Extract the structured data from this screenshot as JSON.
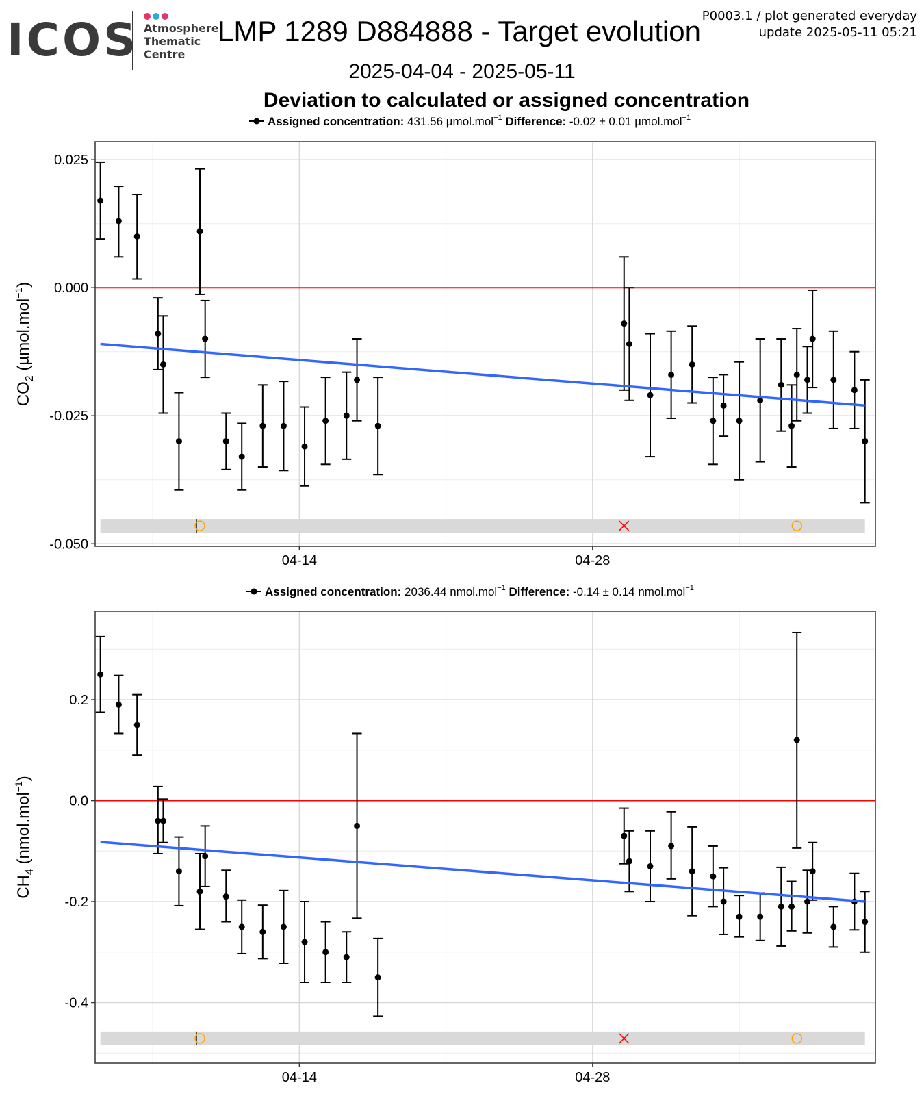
{
  "header": {
    "logo": {
      "text": "ICOS",
      "line1": "Atmosphere",
      "line2": "Thematic",
      "line3": "Centre",
      "dot_colors": [
        "#e8336d",
        "#29aae1",
        "#e8336d"
      ]
    },
    "title": "LMP 1289 D884888 - Target evolution",
    "gen_line1": "P0003.1 / plot generated everyday",
    "gen_line2": "update  2025-05-11 05:21",
    "date_range": "2025-04-04 - 2025-05-11",
    "subtitle": "Deviation to calculated or assigned concentration"
  },
  "colors": {
    "point": "#000000",
    "zero_line": "#ff0000",
    "trend": "#3366ff",
    "flag_band": "#d9d9d9",
    "flag_circle": "#ffa500",
    "flag_cross": "#ff0000",
    "grid_major": "#d6d6d6",
    "grid_minor": "#ebebeb"
  },
  "chart_data": [
    {
      "type": "scatter",
      "id": "co2",
      "ylabel_main": "CO",
      "ylabel_sub": "2",
      "ylabel_unit": " (µmol.mol",
      "ylabel_sup": "−1",
      "ylabel_close": ")",
      "legend": {
        "assigned_label": "Assigned concentration:",
        "assigned_value": " 431.56 µmol.mol",
        "assigned_sup": "−1",
        "diff_label": "Difference:",
        "diff_value": " -0.02 ± 0.01 µmol.mol",
        "diff_sup": "−1"
      },
      "xlim": [
        "2025-04-04T06:00",
        "2025-05-11T12:00"
      ],
      "ylim": [
        -0.0505,
        0.0285
      ],
      "yticks": [
        0.025,
        0.0,
        -0.025,
        -0.05
      ],
      "ytick_labels": [
        "0.025",
        "0.000",
        "-0.025",
        "-0.050"
      ],
      "xticks": [
        "2025-04-14",
        "2025-04-28"
      ],
      "xtick_labels": [
        "04-14",
        "04-28"
      ],
      "x_minor": [
        "2025-04-07",
        "2025-04-21",
        "2025-05-05"
      ],
      "grid": true,
      "hline": 0.0,
      "trend": {
        "x": [
          "2025-04-04T12:00",
          "2025-05-11T00:00"
        ],
        "y": [
          -0.011,
          -0.023
        ]
      },
      "flag_band": {
        "y": -0.0465,
        "x": [
          "2025-04-04T12:00",
          "2025-05-11T00:00"
        ]
      },
      "flags": [
        {
          "x": "2025-04-09T02:00",
          "kind": "tick"
        },
        {
          "x": "2025-04-09T06:00",
          "kind": "circle"
        },
        {
          "x": "2025-04-29T12:00",
          "kind": "cross"
        },
        {
          "x": "2025-05-07T18:00",
          "kind": "circle"
        }
      ],
      "points": [
        {
          "x": "2025-04-04T12:00",
          "y": 0.017,
          "lo": 0.0095,
          "hi": 0.0245
        },
        {
          "x": "2025-04-05T09:00",
          "y": 0.013,
          "lo": 0.006,
          "hi": 0.0198
        },
        {
          "x": "2025-04-06T06:00",
          "y": 0.01,
          "lo": 0.0017,
          "hi": 0.0182
        },
        {
          "x": "2025-04-07T06:00",
          "y": -0.009,
          "lo": -0.016,
          "hi": -0.002
        },
        {
          "x": "2025-04-07T12:00",
          "y": -0.015,
          "lo": -0.0245,
          "hi": -0.0055
        },
        {
          "x": "2025-04-08T06:00",
          "y": -0.03,
          "lo": -0.0395,
          "hi": -0.0205
        },
        {
          "x": "2025-04-09T06:00",
          "y": 0.011,
          "lo": -0.0013,
          "hi": 0.0232
        },
        {
          "x": "2025-04-09T12:00",
          "y": -0.01,
          "lo": -0.0175,
          "hi": -0.0025
        },
        {
          "x": "2025-04-10T12:00",
          "y": -0.03,
          "lo": -0.0355,
          "hi": -0.0245
        },
        {
          "x": "2025-04-11T06:00",
          "y": -0.033,
          "lo": -0.0395,
          "hi": -0.0265
        },
        {
          "x": "2025-04-12T06:00",
          "y": -0.027,
          "lo": -0.035,
          "hi": -0.019
        },
        {
          "x": "2025-04-13T06:00",
          "y": -0.027,
          "lo": -0.0357,
          "hi": -0.0183
        },
        {
          "x": "2025-04-14T06:00",
          "y": -0.031,
          "lo": -0.0387,
          "hi": -0.0233
        },
        {
          "x": "2025-04-15T06:00",
          "y": -0.026,
          "lo": -0.0345,
          "hi": -0.0175
        },
        {
          "x": "2025-04-16T06:00",
          "y": -0.025,
          "lo": -0.0335,
          "hi": -0.0165
        },
        {
          "x": "2025-04-16T18:00",
          "y": -0.018,
          "lo": -0.026,
          "hi": -0.01
        },
        {
          "x": "2025-04-17T18:00",
          "y": -0.027,
          "lo": -0.0365,
          "hi": -0.0175
        },
        {
          "x": "2025-04-29T12:00",
          "y": -0.007,
          "lo": -0.02,
          "hi": 0.006
        },
        {
          "x": "2025-04-29T18:00",
          "y": -0.011,
          "lo": -0.022,
          "hi": 0.0
        },
        {
          "x": "2025-04-30T18:00",
          "y": -0.021,
          "lo": -0.033,
          "hi": -0.009
        },
        {
          "x": "2025-05-01T18:00",
          "y": -0.017,
          "lo": -0.0255,
          "hi": -0.0085
        },
        {
          "x": "2025-05-02T18:00",
          "y": -0.015,
          "lo": -0.0225,
          "hi": -0.0075
        },
        {
          "x": "2025-05-03T18:00",
          "y": -0.026,
          "lo": -0.0345,
          "hi": -0.0175
        },
        {
          "x": "2025-05-04T06:00",
          "y": -0.023,
          "lo": -0.029,
          "hi": -0.017
        },
        {
          "x": "2025-05-05T00:00",
          "y": -0.026,
          "lo": -0.0375,
          "hi": -0.0145
        },
        {
          "x": "2025-05-06T00:00",
          "y": -0.022,
          "lo": -0.034,
          "hi": -0.01
        },
        {
          "x": "2025-05-07T00:00",
          "y": -0.019,
          "lo": -0.028,
          "hi": -0.01
        },
        {
          "x": "2025-05-07T12:00",
          "y": -0.027,
          "lo": -0.035,
          "hi": -0.019
        },
        {
          "x": "2025-05-07T18:00",
          "y": -0.017,
          "lo": -0.026,
          "hi": -0.008
        },
        {
          "x": "2025-05-08T06:00",
          "y": -0.018,
          "lo": -0.0245,
          "hi": -0.0115
        },
        {
          "x": "2025-05-08T12:00",
          "y": -0.01,
          "lo": -0.0195,
          "hi": -0.0005
        },
        {
          "x": "2025-05-09T12:00",
          "y": -0.018,
          "lo": -0.0275,
          "hi": -0.0085
        },
        {
          "x": "2025-05-10T12:00",
          "y": -0.02,
          "lo": -0.0275,
          "hi": -0.0125
        },
        {
          "x": "2025-05-11T00:00",
          "y": -0.03,
          "lo": -0.042,
          "hi": -0.018
        }
      ]
    },
    {
      "type": "scatter",
      "id": "ch4",
      "ylabel_main": "CH",
      "ylabel_sub": "4",
      "ylabel_unit": " (nmol.mol",
      "ylabel_sup": "−1",
      "ylabel_close": ")",
      "legend": {
        "assigned_label": "Assigned concentration:",
        "assigned_value": " 2036.44 nmol.mol",
        "assigned_sup": "−1",
        "diff_label": "Difference:",
        "diff_value": " -0.14 ± 0.14 nmol.mol",
        "diff_sup": "−1"
      },
      "xlim": [
        "2025-04-04T06:00",
        "2025-05-11T12:00"
      ],
      "ylim": [
        -0.52,
        0.375
      ],
      "yticks": [
        0.2,
        0.0,
        -0.2,
        -0.4
      ],
      "ytick_labels": [
        "0.2",
        "0.0",
        "-0.2",
        "-0.4"
      ],
      "xticks": [
        "2025-04-14",
        "2025-04-28"
      ],
      "xtick_labels": [
        "04-14",
        "04-28"
      ],
      "x_minor": [
        "2025-04-07",
        "2025-04-21",
        "2025-05-05"
      ],
      "grid": true,
      "hline": 0.0,
      "trend": {
        "x": [
          "2025-04-04T12:00",
          "2025-05-11T00:00"
        ],
        "y": [
          -0.082,
          -0.2
        ]
      },
      "flag_band": {
        "y": -0.471,
        "x": [
          "2025-04-04T12:00",
          "2025-05-11T00:00"
        ]
      },
      "flags": [
        {
          "x": "2025-04-09T02:00",
          "kind": "tick"
        },
        {
          "x": "2025-04-09T06:00",
          "kind": "circle"
        },
        {
          "x": "2025-04-29T12:00",
          "kind": "cross"
        },
        {
          "x": "2025-05-07T18:00",
          "kind": "circle"
        }
      ],
      "points": [
        {
          "x": "2025-04-04T12:00",
          "y": 0.25,
          "lo": 0.175,
          "hi": 0.325
        },
        {
          "x": "2025-04-05T09:00",
          "y": 0.19,
          "lo": 0.133,
          "hi": 0.248
        },
        {
          "x": "2025-04-06T06:00",
          "y": 0.15,
          "lo": 0.09,
          "hi": 0.21
        },
        {
          "x": "2025-04-07T06:00",
          "y": -0.04,
          "lo": -0.105,
          "hi": 0.028
        },
        {
          "x": "2025-04-07T12:00",
          "y": -0.04,
          "lo": -0.083,
          "hi": 0.003
        },
        {
          "x": "2025-04-08T06:00",
          "y": -0.14,
          "lo": -0.208,
          "hi": -0.072
        },
        {
          "x": "2025-04-09T06:00",
          "y": -0.18,
          "lo": -0.255,
          "hi": -0.105
        },
        {
          "x": "2025-04-09T12:00",
          "y": -0.11,
          "lo": -0.17,
          "hi": -0.05
        },
        {
          "x": "2025-04-10T12:00",
          "y": -0.19,
          "lo": -0.24,
          "hi": -0.138
        },
        {
          "x": "2025-04-11T06:00",
          "y": -0.25,
          "lo": -0.303,
          "hi": -0.197
        },
        {
          "x": "2025-04-12T06:00",
          "y": -0.26,
          "lo": -0.313,
          "hi": -0.207
        },
        {
          "x": "2025-04-13T06:00",
          "y": -0.25,
          "lo": -0.322,
          "hi": -0.178
        },
        {
          "x": "2025-04-14T06:00",
          "y": -0.28,
          "lo": -0.36,
          "hi": -0.2
        },
        {
          "x": "2025-04-15T06:00",
          "y": -0.3,
          "lo": -0.36,
          "hi": -0.24
        },
        {
          "x": "2025-04-16T06:00",
          "y": -0.31,
          "lo": -0.36,
          "hi": -0.26
        },
        {
          "x": "2025-04-16T18:00",
          "y": -0.05,
          "lo": -0.233,
          "hi": 0.133
        },
        {
          "x": "2025-04-17T18:00",
          "y": -0.35,
          "lo": -0.427,
          "hi": -0.273
        },
        {
          "x": "2025-04-29T12:00",
          "y": -0.07,
          "lo": -0.125,
          "hi": -0.015
        },
        {
          "x": "2025-04-29T18:00",
          "y": -0.12,
          "lo": -0.18,
          "hi": -0.06
        },
        {
          "x": "2025-04-30T18:00",
          "y": -0.13,
          "lo": -0.2,
          "hi": -0.06
        },
        {
          "x": "2025-05-01T18:00",
          "y": -0.09,
          "lo": -0.155,
          "hi": -0.022
        },
        {
          "x": "2025-05-02T18:00",
          "y": -0.14,
          "lo": -0.228,
          "hi": -0.052
        },
        {
          "x": "2025-05-03T18:00",
          "y": -0.15,
          "lo": -0.21,
          "hi": -0.09
        },
        {
          "x": "2025-05-04T06:00",
          "y": -0.2,
          "lo": -0.265,
          "hi": -0.133
        },
        {
          "x": "2025-05-05T00:00",
          "y": -0.23,
          "lo": -0.27,
          "hi": -0.188
        },
        {
          "x": "2025-05-06T00:00",
          "y": -0.23,
          "lo": -0.277,
          "hi": -0.183
        },
        {
          "x": "2025-05-07T00:00",
          "y": -0.21,
          "lo": -0.288,
          "hi": -0.132
        },
        {
          "x": "2025-05-07T12:00",
          "y": -0.21,
          "lo": -0.258,
          "hi": -0.16
        },
        {
          "x": "2025-05-07T18:00",
          "y": 0.12,
          "lo": -0.094,
          "hi": 0.333
        },
        {
          "x": "2025-05-08T06:00",
          "y": -0.2,
          "lo": -0.262,
          "hi": -0.138
        },
        {
          "x": "2025-05-08T12:00",
          "y": -0.14,
          "lo": -0.197,
          "hi": -0.083
        },
        {
          "x": "2025-05-09T12:00",
          "y": -0.25,
          "lo": -0.29,
          "hi": -0.21
        },
        {
          "x": "2025-05-10T12:00",
          "y": -0.2,
          "lo": -0.256,
          "hi": -0.144
        },
        {
          "x": "2025-05-11T00:00",
          "y": -0.24,
          "lo": -0.3,
          "hi": -0.18
        }
      ]
    }
  ]
}
